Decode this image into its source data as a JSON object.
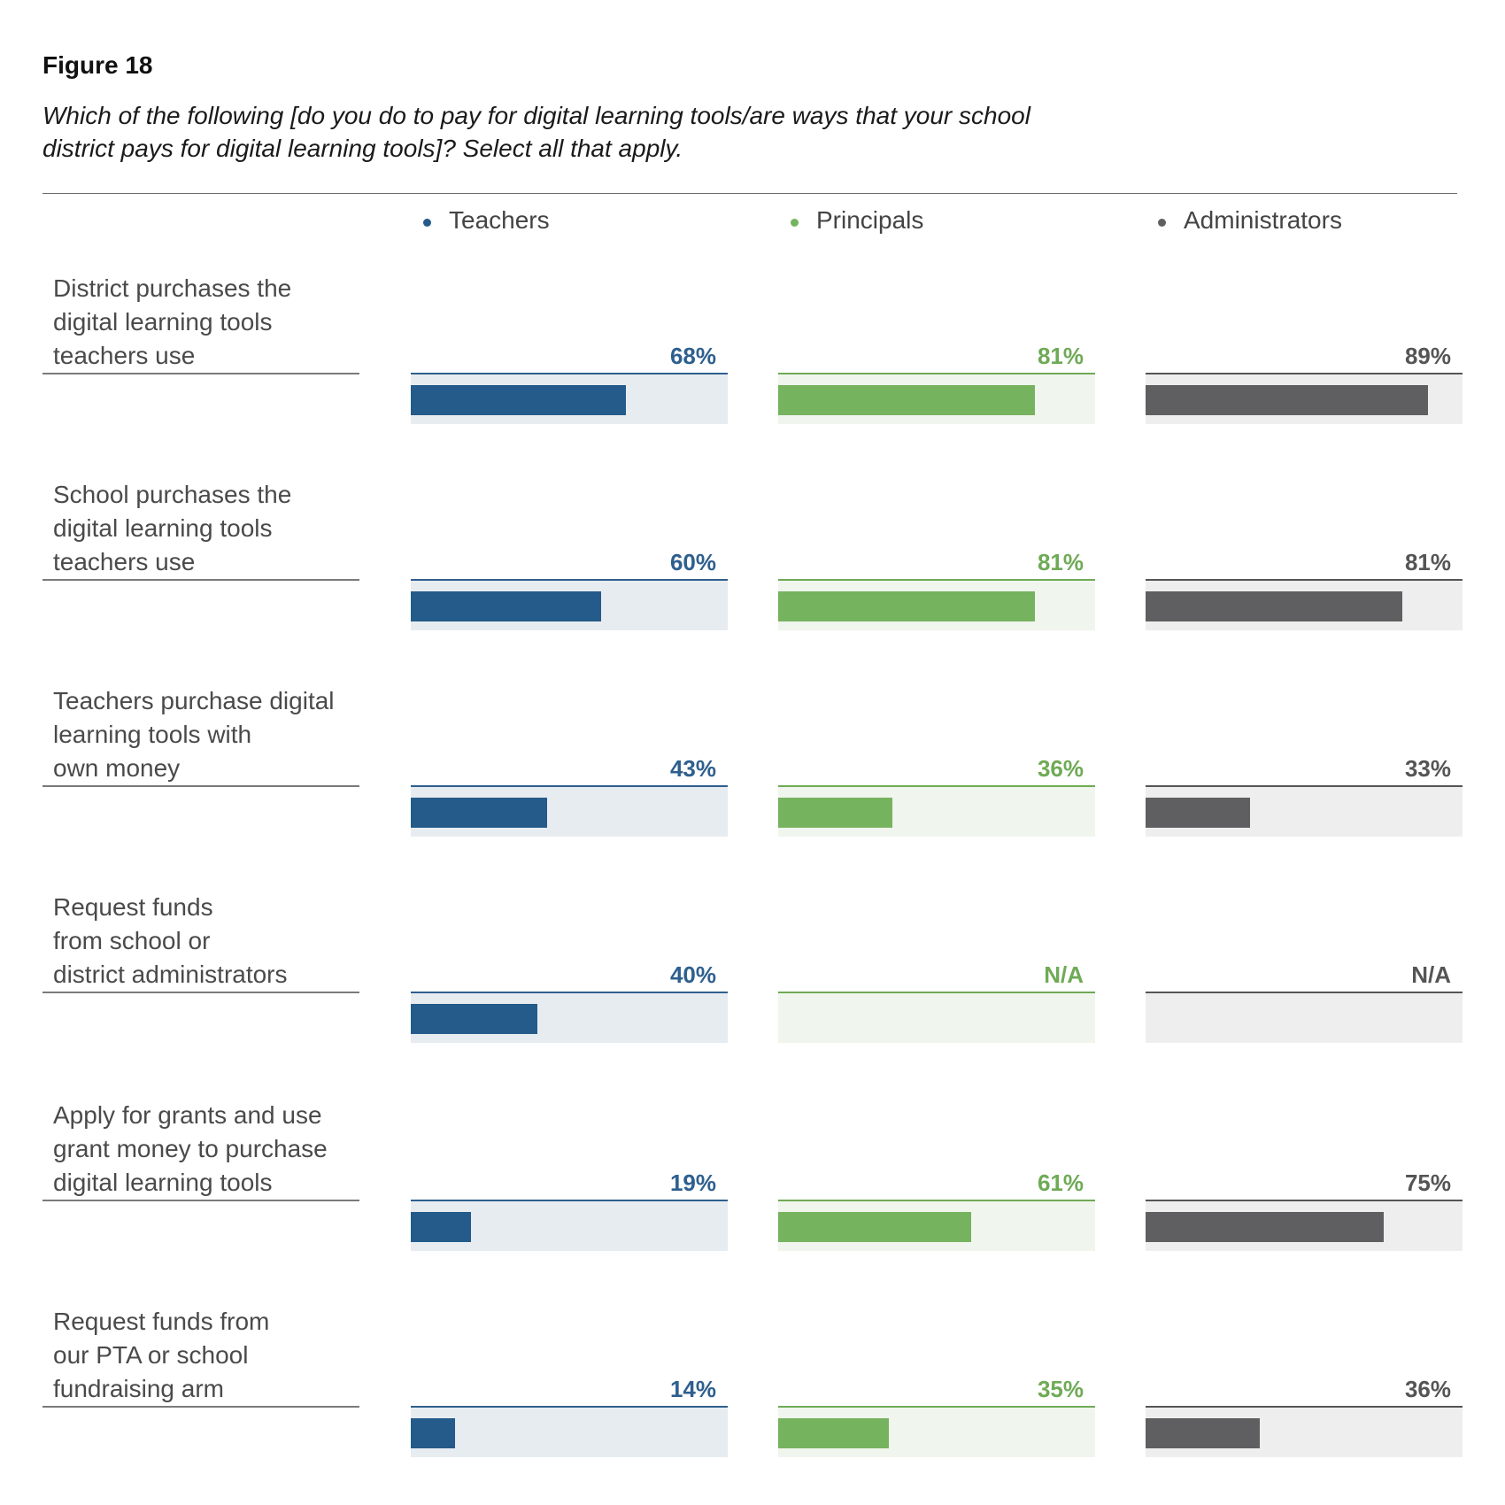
{
  "figure_label": "Figure 18",
  "chart_data": {
    "type": "bar",
    "orientation": "horizontal",
    "title": "Which of the following [do you do to pay for digital learning tools/are ways that your school district pays for digital learning tools]? Select all that apply.",
    "xlim": [
      0,
      100
    ],
    "categories": [
      "District purchases the digital learning tools teachers use",
      "School purchases the digital learning tools teachers use",
      "Teachers purchase digital learning tools with own money",
      "Request funds from school or district administrators",
      "Apply for grants and use grant money to purchase digital learning tools",
      "Request funds from our PTA or school fundraising arm"
    ],
    "category_lines": [
      [
        "District purchases the",
        "digital learning tools",
        "teachers use"
      ],
      [
        "School purchases the",
        "digital learning tools",
        "teachers use"
      ],
      [
        "Teachers purchase digital",
        "learning tools with",
        "own money"
      ],
      [
        "Request funds",
        "from school or",
        "district administrators"
      ],
      [
        "Apply for grants and use",
        "grant money to purchase",
        "digital learning tools"
      ],
      [
        "Request funds from",
        "our PTA or school",
        "fundraising arm"
      ]
    ],
    "series": [
      {
        "name": "Teachers",
        "color": "#245b8a",
        "track_color": "#e7ecf0",
        "values": [
          68,
          60,
          43,
          40,
          19,
          14
        ],
        "labels": [
          "68%",
          "60%",
          "43%",
          "40%",
          "19%",
          "14%"
        ]
      },
      {
        "name": "Principals",
        "color": "#76b35f",
        "track_color": "#f0f5ed",
        "values": [
          81,
          81,
          36,
          null,
          61,
          35
        ],
        "labels": [
          "81%",
          "81%",
          "36%",
          "N/A",
          "61%",
          "35%"
        ]
      },
      {
        "name": "Administrators",
        "color": "#5f5f61",
        "track_color": "#eeeeee",
        "values": [
          89,
          81,
          33,
          null,
          75,
          36
        ],
        "labels": [
          "89%",
          "81%",
          "33%",
          "N/A",
          "75%",
          "36%"
        ]
      }
    ],
    "label_colors": [
      "#2e5f8e",
      "#6faa56",
      "#555555"
    ],
    "legend_position": "top",
    "grid": false
  }
}
